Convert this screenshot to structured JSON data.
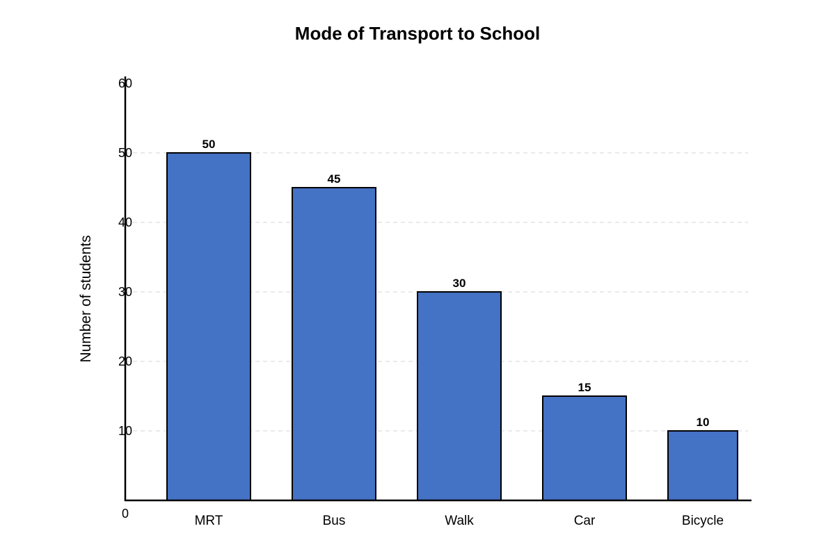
{
  "chart_data": {
    "type": "bar",
    "title": "Mode of Transport to School",
    "xlabel": "",
    "ylabel": "Number of students",
    "categories": [
      "MRT",
      "Bus",
      "Walk",
      "Car",
      "Bicycle"
    ],
    "values": [
      50,
      45,
      30,
      15,
      10
    ],
    "data_labels": [
      "50",
      "45",
      "30",
      "15",
      "10"
    ],
    "ylim": [
      0,
      60
    ],
    "y_ticks": [
      0,
      10,
      20,
      30,
      40,
      50,
      60
    ],
    "grid": true,
    "legend": "none",
    "bar_color": "#4472C4",
    "bar_edge_color": "#000000",
    "grid_color": "#dddddd"
  }
}
